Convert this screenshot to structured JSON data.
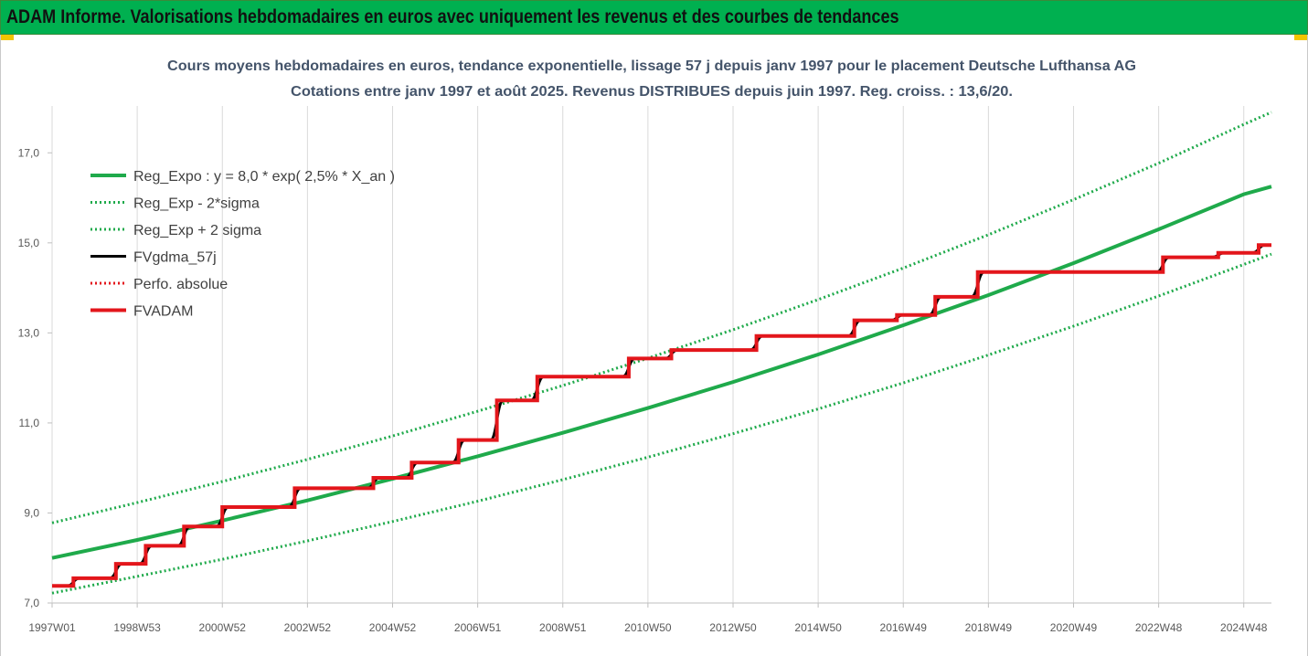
{
  "header": {
    "title": "ADAM Informe. Valorisations hebdomadaires en euros avec uniquement les revenus et des courbes de tendances"
  },
  "colors": {
    "header_bg": "#00b050",
    "trend_green": "#1faa4b",
    "red": "#e3161b",
    "black": "#000000",
    "grid": "#d9d9d9",
    "corner_marks": "#f2c500"
  },
  "chart_data": {
    "type": "line",
    "title_line1": "Cours moyens hebdomadaires en euros, tendance exponentielle, lissage 57 j depuis janv 1997  pour le placement Deutsche Lufthansa AG",
    "title_line2": "Cotations entre janv 1997 et août 2025.  Revenus DISTRIBUES depuis juin 1997.  Reg. croiss. : 13,6/20.",
    "xlabel": "",
    "ylabel": "",
    "x_domain": [
      1997.0,
      2025.65
    ],
    "ylim": [
      7.0,
      18.0
    ],
    "y_ticks": [
      {
        "value": 7,
        "label": "7,0"
      },
      {
        "value": 9,
        "label": "9,0"
      },
      {
        "value": 11,
        "label": "11,0"
      },
      {
        "value": 13,
        "label": "13,0"
      },
      {
        "value": 15,
        "label": "15,0"
      },
      {
        "value": 17,
        "label": "17,0"
      }
    ],
    "x_ticks": [
      {
        "value": 1997.0,
        "label": "1997W01"
      },
      {
        "value": 1999.0,
        "label": "1998W53"
      },
      {
        "value": 2001.0,
        "label": "2000W52"
      },
      {
        "value": 2003.0,
        "label": "2002W52"
      },
      {
        "value": 2005.0,
        "label": "2004W52"
      },
      {
        "value": 2007.0,
        "label": "2006W51"
      },
      {
        "value": 2009.0,
        "label": "2008W51"
      },
      {
        "value": 2011.0,
        "label": "2010W50"
      },
      {
        "value": 2013.0,
        "label": "2012W50"
      },
      {
        "value": 2015.0,
        "label": "2014W50"
      },
      {
        "value": 2017.0,
        "label": "2016W49"
      },
      {
        "value": 2019.0,
        "label": "2018W49"
      },
      {
        "value": 2021.0,
        "label": "2020W49"
      },
      {
        "value": 2023.0,
        "label": "2022W48"
      },
      {
        "value": 2025.0,
        "label": "2024W48"
      }
    ],
    "grid": {
      "vertical": true,
      "horizontal": false
    },
    "legend_position": "top-left",
    "series": [
      {
        "name": "Reg_Expo : y = 8,0 * exp( 2,5% *  X_an )",
        "style": "solid-thick",
        "color": "#1faa4b",
        "x": [
          1997,
          1999,
          2001,
          2003,
          2005,
          2007,
          2009,
          2011,
          2013,
          2015,
          2017,
          2019,
          2021,
          2023,
          2025,
          2025.65
        ],
        "y": [
          8.0,
          8.4,
          8.83,
          9.28,
          9.76,
          10.26,
          10.78,
          11.33,
          11.91,
          12.52,
          13.17,
          13.84,
          14.55,
          15.3,
          16.08,
          16.25
        ]
      },
      {
        "name": "Reg_Exp - 2*sigma",
        "style": "dotted",
        "color": "#1faa4b",
        "x": [
          1997,
          1999,
          2001,
          2003,
          2005,
          2007,
          2009,
          2011,
          2013,
          2015,
          2017,
          2019,
          2021,
          2023,
          2025,
          2025.65
        ],
        "y": [
          7.22,
          7.59,
          7.97,
          8.38,
          8.81,
          9.26,
          9.74,
          10.24,
          10.76,
          11.31,
          11.89,
          12.51,
          13.15,
          13.82,
          14.52,
          14.75
        ]
      },
      {
        "name": "Reg_Exp + 2 sigma",
        "style": "dotted",
        "color": "#1faa4b",
        "x": [
          1997,
          1999,
          2001,
          2003,
          2005,
          2007,
          2009,
          2011,
          2013,
          2015,
          2017,
          2019,
          2021,
          2023,
          2025,
          2025.65
        ],
        "y": [
          8.78,
          9.23,
          9.7,
          10.19,
          10.71,
          11.26,
          11.83,
          12.44,
          13.07,
          13.74,
          14.44,
          15.18,
          15.96,
          16.77,
          17.63,
          17.9
        ]
      },
      {
        "name": "FVgdma_57j",
        "style": "solid-smooth",
        "color": "#000000",
        "x": [
          1997.0,
          1997.35,
          1997.65,
          1998.35,
          1998.65,
          1999.05,
          1999.35,
          1999.95,
          2000.25,
          2000.85,
          2001.15,
          2002.55,
          2002.85,
          2004.4,
          2004.7,
          2005.3,
          2005.6,
          2006.4,
          2006.7,
          2007.3,
          2007.6,
          2008.25,
          2008.55,
          2010.4,
          2010.7,
          2011.4,
          2011.7,
          2013.4,
          2013.7,
          2015.7,
          2016.0,
          2016.7,
          2017.0,
          2017.6,
          2017.9,
          2018.6,
          2018.9,
          2022.95,
          2023.25,
          2024.25,
          2024.55,
          2025.2,
          2025.5,
          2025.65
        ],
        "y": [
          7.38,
          7.38,
          7.55,
          7.55,
          7.87,
          7.87,
          8.27,
          8.27,
          8.7,
          8.7,
          9.13,
          9.13,
          9.55,
          9.55,
          9.78,
          9.78,
          10.12,
          10.12,
          10.62,
          10.62,
          11.5,
          11.5,
          12.03,
          12.03,
          12.43,
          12.43,
          12.62,
          12.62,
          12.93,
          12.93,
          13.28,
          13.28,
          13.4,
          13.4,
          13.8,
          13.8,
          14.35,
          14.35,
          14.68,
          14.68,
          14.78,
          14.78,
          14.95,
          14.95
        ]
      },
      {
        "name": "Perfo. absolue",
        "style": "dotted",
        "color": "#e3161b",
        "x": [],
        "y": []
      },
      {
        "name": "FVADAM",
        "style": "step-thick",
        "color": "#e3161b",
        "x": [
          1997.0,
          1997.5,
          1997.5,
          1998.5,
          1998.5,
          1999.2,
          1999.2,
          2000.1,
          2000.1,
          2001.0,
          2001.0,
          2002.7,
          2002.7,
          2004.55,
          2004.55,
          2005.45,
          2005.45,
          2006.55,
          2006.55,
          2007.45,
          2007.45,
          2008.4,
          2008.4,
          2010.55,
          2010.55,
          2011.55,
          2011.55,
          2013.55,
          2013.55,
          2015.85,
          2015.85,
          2016.85,
          2016.85,
          2017.75,
          2017.75,
          2018.75,
          2018.75,
          2023.1,
          2023.1,
          2024.4,
          2024.4,
          2025.35,
          2025.35,
          2025.65
        ],
        "y": [
          7.38,
          7.38,
          7.55,
          7.55,
          7.87,
          7.87,
          8.27,
          8.27,
          8.7,
          8.7,
          9.13,
          9.13,
          9.55,
          9.55,
          9.78,
          9.78,
          10.12,
          10.12,
          10.62,
          10.62,
          11.5,
          11.5,
          12.03,
          12.03,
          12.43,
          12.43,
          12.62,
          12.62,
          12.93,
          12.93,
          13.28,
          13.28,
          13.4,
          13.4,
          13.8,
          13.8,
          14.35,
          14.35,
          14.68,
          14.68,
          14.78,
          14.78,
          14.95,
          14.95
        ]
      }
    ]
  }
}
